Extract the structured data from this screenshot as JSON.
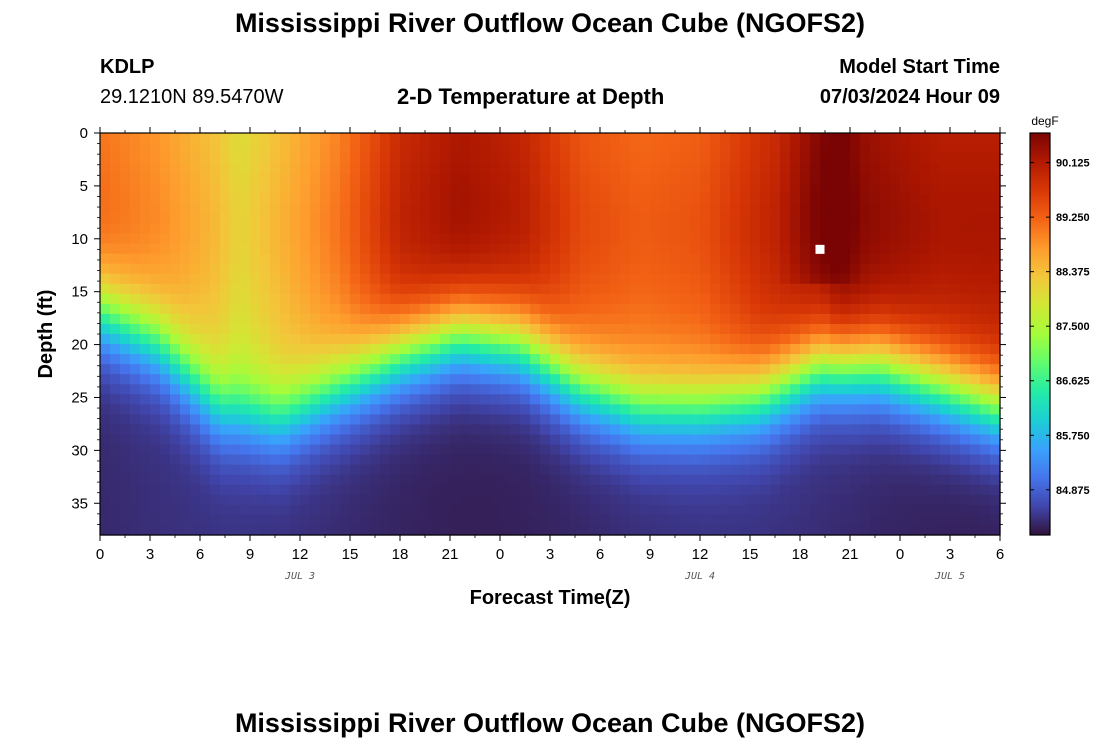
{
  "header": {
    "title": "Mississippi River Outflow Ocean Cube (NGOFS2)",
    "station_id": "KDLP",
    "station_coords": "29.1210N  89.5470W",
    "plot_title": "2-D Temperature at Depth",
    "model_start_label": "Model Start Time",
    "model_start_value": "07/03/2024 Hour 09"
  },
  "footer": {
    "title": "Mississippi River Outflow Ocean Cube (NGOFS2)"
  },
  "chart_data": {
    "type": "heatmap",
    "title": "2-D Temperature at Depth",
    "xlabel": "Forecast Time(Z)",
    "ylabel": "Depth (ft)",
    "units": "degF",
    "x_hours_from_start": [
      0,
      45
    ],
    "x_tick_labels": [
      "0",
      "3",
      "6",
      "9",
      "12",
      "15",
      "18",
      "21",
      "0",
      "3",
      "6",
      "9",
      "12",
      "15",
      "18",
      "21",
      "0",
      "3",
      "6"
    ],
    "date_labels": [
      {
        "label": "JUL 3",
        "hour": 10
      },
      {
        "label": "JUL 4",
        "hour": 30
      },
      {
        "label": "JUL 5",
        "hour": 42.5
      }
    ],
    "y_ticks": [
      0,
      5,
      10,
      15,
      20,
      25,
      30,
      35
    ],
    "ylim": [
      0,
      38
    ],
    "colorbar_ticks": [
      "84.875",
      "85.750",
      "86.625",
      "87.500",
      "88.375",
      "89.250",
      "90.125"
    ],
    "colorbar_range": [
      84.15,
      90.6
    ],
    "thermocline_profile": [
      {
        "hour": 0,
        "depth_ft": 17
      },
      {
        "hour": 3,
        "depth_ft": 20
      },
      {
        "hour": 6,
        "depth_ft": 26
      },
      {
        "hour": 9,
        "depth_ft": 27
      },
      {
        "hour": 12,
        "depth_ft": 24
      },
      {
        "hour": 15,
        "depth_ft": 21
      },
      {
        "hour": 18,
        "depth_ft": 19
      },
      {
        "hour": 21,
        "depth_ft": 20
      },
      {
        "hour": 24,
        "depth_ft": 24
      },
      {
        "hour": 27,
        "depth_ft": 26
      },
      {
        "hour": 30,
        "depth_ft": 26
      },
      {
        "hour": 33,
        "depth_ft": 25
      },
      {
        "hour": 36,
        "depth_ft": 22
      },
      {
        "hour": 39,
        "depth_ft": 22
      },
      {
        "hour": 42,
        "depth_ft": 24
      },
      {
        "hour": 45,
        "depth_ft": 26
      }
    ],
    "surface_temperature_profile": [
      {
        "hour": 0,
        "temp_f": 89.1
      },
      {
        "hour": 3,
        "temp_f": 88.8
      },
      {
        "hour": 6,
        "temp_f": 88.3
      },
      {
        "hour": 7,
        "temp_f": 88.0
      },
      {
        "hour": 9,
        "temp_f": 88.4
      },
      {
        "hour": 12,
        "temp_f": 89.0
      },
      {
        "hour": 15,
        "temp_f": 89.9
      },
      {
        "hour": 18,
        "temp_f": 90.2
      },
      {
        "hour": 21,
        "temp_f": 90.0
      },
      {
        "hour": 24,
        "temp_f": 89.4
      },
      {
        "hour": 27,
        "temp_f": 89.2
      },
      {
        "hour": 30,
        "temp_f": 89.3
      },
      {
        "hour": 33,
        "temp_f": 89.8
      },
      {
        "hour": 36,
        "temp_f": 90.2
      },
      {
        "hour": 37,
        "temp_f": 90.5
      },
      {
        "hour": 39,
        "temp_f": 90.3
      },
      {
        "hour": 42,
        "temp_f": 90.1
      },
      {
        "hour": 45,
        "temp_f": 90.1
      }
    ],
    "marker": {
      "hour": 36,
      "depth_ft": 11
    }
  },
  "colors": {
    "palette": [
      "#30123b",
      "#4146ac",
      "#4675ed",
      "#39a2fc",
      "#1bcfd4",
      "#24eca6",
      "#61fc6c",
      "#a4fc3b",
      "#d1e834",
      "#f3c63a",
      "#fe9b2d",
      "#f36315",
      "#d93806",
      "#b11901",
      "#7a0403"
    ]
  }
}
